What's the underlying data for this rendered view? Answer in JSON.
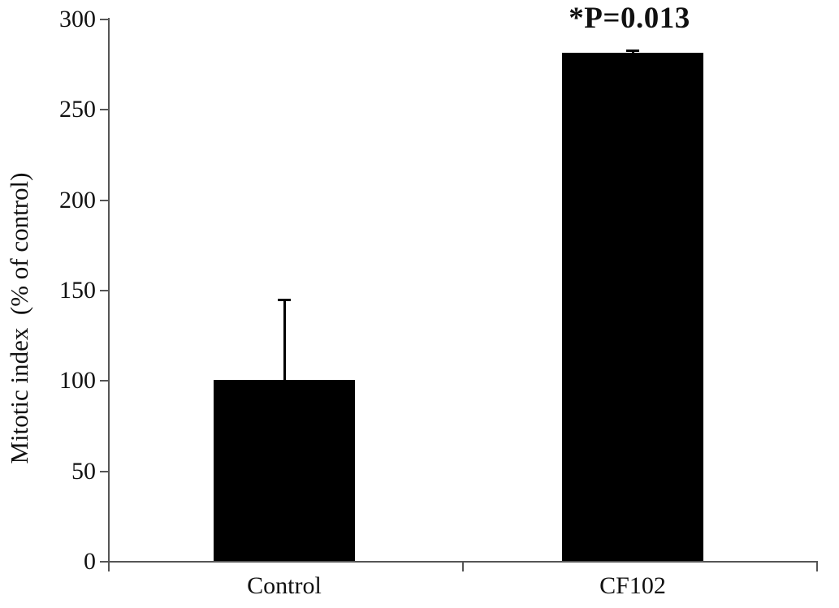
{
  "chart_data": {
    "type": "bar",
    "title": "",
    "annotation": "*P=0.013",
    "categories": [
      "Control",
      "CF102"
    ],
    "values": [
      100,
      281
    ],
    "errors": [
      45,
      2
    ],
    "xlabel": "",
    "ylabel": "Mitotic index  (% of control)",
    "ylim": [
      0,
      300
    ],
    "yticks": [
      0,
      50,
      100,
      150,
      200,
      250,
      300
    ],
    "grid": false,
    "legend_position": "none",
    "bar_color": "#000000",
    "axis_color": "#555555",
    "text_color": "#111111"
  }
}
